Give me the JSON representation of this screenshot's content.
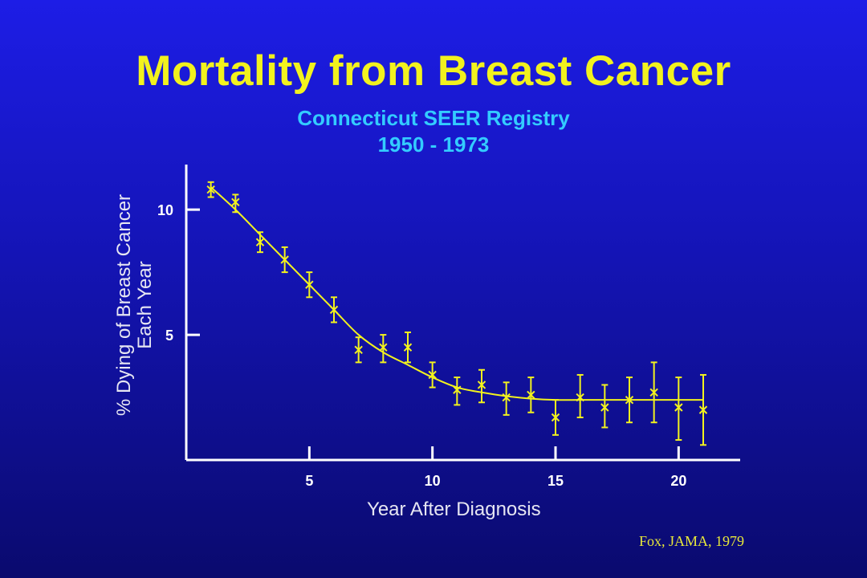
{
  "slide": {
    "title": "Mortality from Breast Cancer",
    "subtitle_line1": "Connecticut SEER Registry",
    "subtitle_line2": "1950 - 1973",
    "citation": "Fox, JAMA, 1979",
    "colors": {
      "background_top": "#1d1de6",
      "background_bottom": "#0a0a6e",
      "title": "#f2f21e",
      "subtitle": "#33ccff",
      "axis_labels": "#e6e6f2",
      "plot": "#f2f21e"
    }
  },
  "chart_data": {
    "type": "scatter",
    "title": "",
    "xlabel": "Year After Diagnosis",
    "ylabel_lines": [
      "% Dying of Breast Cancer",
      "Each Year"
    ],
    "xlim": [
      0,
      22.5
    ],
    "ylim": [
      0,
      11.8
    ],
    "x_ticks": [
      5,
      10,
      15,
      20
    ],
    "x_tick_labels": [
      "5",
      "10",
      "15",
      "20"
    ],
    "y_ticks": [
      5,
      10
    ],
    "y_tick_labels": [
      "5",
      "10"
    ],
    "grid": false,
    "series": [
      {
        "x": [
          1,
          2,
          3,
          4,
          5,
          6,
          7,
          8,
          9,
          10,
          11,
          12,
          13,
          14,
          15,
          16,
          17,
          18,
          19,
          20,
          21
        ],
        "y": [
          10.8,
          10.3,
          8.7,
          8.0,
          7.0,
          6.0,
          4.4,
          4.5,
          4.5,
          3.4,
          2.8,
          3.0,
          2.5,
          2.6,
          1.7,
          2.5,
          2.1,
          2.4,
          2.7,
          2.1,
          2.0
        ],
        "err_low": [
          10.5,
          9.9,
          8.3,
          7.5,
          6.5,
          5.5,
          3.9,
          3.9,
          3.9,
          2.9,
          2.2,
          2.3,
          1.8,
          1.9,
          1.0,
          1.7,
          1.3,
          1.5,
          1.5,
          0.8,
          0.6
        ],
        "err_high": [
          11.1,
          10.6,
          9.1,
          8.5,
          7.5,
          6.5,
          4.9,
          5.0,
          5.1,
          3.9,
          3.3,
          3.6,
          3.1,
          3.3,
          2.4,
          3.4,
          3.0,
          3.3,
          3.9,
          3.3,
          3.4
        ]
      }
    ],
    "trend_curve": {
      "x": [
        1,
        2,
        3,
        4,
        5,
        6,
        7,
        8,
        9,
        10,
        11,
        12,
        13,
        14,
        15,
        16,
        17,
        18,
        19,
        20,
        21
      ],
      "y": [
        10.9,
        10.0,
        9.0,
        8.0,
        7.0,
        6.0,
        5.0,
        4.3,
        3.8,
        3.3,
        2.9,
        2.7,
        2.55,
        2.45,
        2.4,
        2.4,
        2.4,
        2.4,
        2.4,
        2.4,
        2.4
      ]
    }
  }
}
